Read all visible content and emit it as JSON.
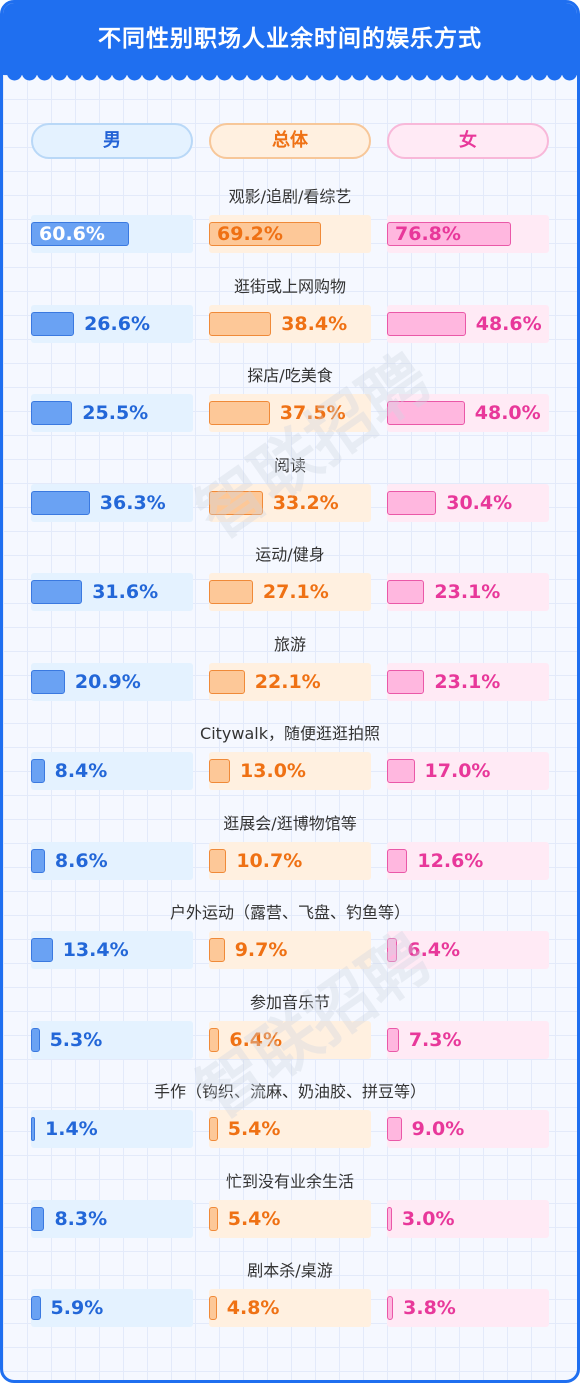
{
  "title": "不同性别职场人业余时间的娱乐方式",
  "watermark": "智联招聘",
  "colors": {
    "header": "#1f6ff0",
    "male": "#6aa2f3",
    "total": "#fdc898",
    "female": "#ffb7df",
    "male_text": "#2367d8",
    "total_text": "#ef7114",
    "female_text": "#e8389a"
  },
  "chart_data": {
    "type": "bar",
    "title": "不同性别职场人业余时间的娱乐方式",
    "unit": "%",
    "categories": [
      "观影/追剧/看综艺",
      "逛街或上网购物",
      "探店/吃美食",
      "阅读",
      "运动/健身",
      "旅游",
      "Citywalk，随便逛逛拍照",
      "逛展会/逛博物馆等",
      "户外运动（露营、飞盘、钓鱼等）",
      "参加音乐节",
      "手作（钩织、流麻、奶油胶、拼豆等）",
      "忙到没有业余生活",
      "剧本杀/桌游"
    ],
    "series": [
      {
        "name": "男",
        "values": [
          60.6,
          26.6,
          25.5,
          36.3,
          31.6,
          20.9,
          8.4,
          8.6,
          13.4,
          5.3,
          1.4,
          8.3,
          5.9
        ],
        "labels": [
          "60.6%",
          "26.6%",
          "25.5%",
          "36.3%",
          "31.6%",
          "20.9%",
          "8.4%",
          "8.6%",
          "13.4%",
          "5.3%",
          "1.4%",
          "8.3%",
          "5.9%"
        ]
      },
      {
        "name": "总体",
        "values": [
          69.2,
          38.4,
          37.5,
          33.2,
          27.1,
          22.1,
          13.0,
          10.7,
          9.7,
          6.4,
          5.4,
          5.4,
          4.8
        ],
        "labels": [
          "69.2%",
          "38.4%",
          "37.5%",
          "33.2%",
          "27.1%",
          "22.1%",
          "13.0%",
          "10.7%",
          "9.7%",
          "6.4%",
          "5.4%",
          "5.4%",
          "4.8%"
        ]
      },
      {
        "name": "女",
        "values": [
          76.8,
          48.6,
          48.0,
          30.4,
          23.1,
          23.1,
          17.0,
          12.6,
          6.4,
          7.3,
          9.0,
          3.0,
          3.8
        ],
        "labels": [
          "76.8%",
          "48.6%",
          "48.0%",
          "30.4%",
          "23.1%",
          "23.1%",
          "17.0%",
          "12.6%",
          "6.4%",
          "7.3%",
          "9.0%",
          "3.0%",
          "3.8%"
        ]
      }
    ],
    "xlim": [
      0,
      100
    ],
    "legend": "top"
  }
}
